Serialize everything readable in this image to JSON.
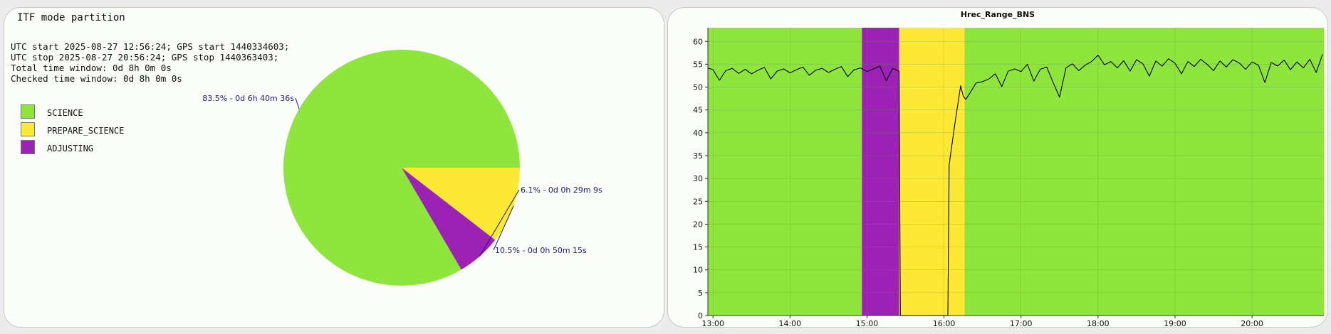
{
  "pie_panel": {
    "title": "ITF mode partition",
    "info_lines": [
      "UTC start 2025-08-27 12:56:24; GPS start 1440334603;",
      "UTC stop 2025-08-27 20:56:24; GPS stop 1440363403;",
      "Total time window: 0d 8h 0m 0s",
      "Checked time window: 0d 8h 0m 0s"
    ],
    "legend": [
      {
        "label": "SCIENCE",
        "color": "#8ee63c"
      },
      {
        "label": "PREPARE_SCIENCE",
        "color": "#fde935"
      },
      {
        "label": "ADJUSTING",
        "color": "#9b22b4"
      }
    ]
  },
  "chart_data": [
    {
      "type": "pie",
      "title": "ITF mode partition",
      "slices": [
        {
          "name": "SCIENCE",
          "value": 83.5,
          "label": "83.5% - 0d 6h 40m 36s",
          "color": "#8ee63c"
        },
        {
          "name": "PREPARE_SCIENCE",
          "value": 10.5,
          "label": "10.5% - 0d 0h 50m 15s",
          "color": "#fde935"
        },
        {
          "name": "ADJUSTING",
          "value": 6.1,
          "label": "6.1% - 0d 0h 29m 9s",
          "color": "#9b22b4"
        }
      ]
    },
    {
      "type": "line",
      "title": "Hrec_Range_BNS",
      "xlim": [
        "12:56",
        "20:56"
      ],
      "ylim": [
        0,
        63
      ],
      "x_ticks": [
        "13:00",
        "14:00",
        "15:00",
        "16:00",
        "17:00",
        "18:00",
        "19:00",
        "20:00"
      ],
      "y_ticks": [
        0,
        5,
        10,
        15,
        20,
        25,
        30,
        35,
        40,
        45,
        50,
        55,
        60
      ],
      "grid": true,
      "bands": [
        {
          "start": "12:56",
          "end": "14:56",
          "mode": "SCIENCE",
          "color": "#8ee63c"
        },
        {
          "start": "14:56",
          "end": "15:25",
          "mode": "ADJUSTING",
          "color": "#9b22b4"
        },
        {
          "start": "15:25",
          "end": "16:16",
          "mode": "PREPARE_SCIENCE",
          "color": "#fde935"
        },
        {
          "start": "16:16",
          "end": "20:56",
          "mode": "SCIENCE",
          "color": "#8ee63c"
        }
      ],
      "series": [
        {
          "color": "#000000",
          "points": [
            [
              "12:56",
              54.2
            ],
            [
              "13:00",
              53.8
            ],
            [
              "13:05",
              51.5
            ],
            [
              "13:10",
              53.6
            ],
            [
              "13:15",
              54.1
            ],
            [
              "13:20",
              53.0
            ],
            [
              "13:25",
              53.9
            ],
            [
              "13:30",
              52.9
            ],
            [
              "13:35",
              53.7
            ],
            [
              "13:40",
              54.3
            ],
            [
              "13:45",
              51.8
            ],
            [
              "13:50",
              53.5
            ],
            [
              "13:55",
              54.0
            ],
            [
              "14:00",
              53.1
            ],
            [
              "14:05",
              53.8
            ],
            [
              "14:10",
              54.4
            ],
            [
              "14:15",
              52.6
            ],
            [
              "14:20",
              53.7
            ],
            [
              "14:25",
              54.1
            ],
            [
              "14:30",
              53.2
            ],
            [
              "14:35",
              53.9
            ],
            [
              "14:40",
              54.5
            ],
            [
              "14:45",
              52.3
            ],
            [
              "14:50",
              53.8
            ],
            [
              "14:55",
              54.2
            ],
            [
              "15:00",
              53.4
            ],
            [
              "15:05",
              54.0
            ],
            [
              "15:10",
              54.6
            ],
            [
              "15:15",
              51.4
            ],
            [
              "15:20",
              54.1
            ],
            [
              "15:25",
              53.5
            ],
            [
              "15:26",
              0
            ],
            [
              "16:03",
              0
            ],
            [
              "16:04",
              33.0
            ],
            [
              "16:06",
              37.0
            ],
            [
              "16:09",
              43.0
            ],
            [
              "16:12",
              48.5
            ],
            [
              "16:13",
              50.3
            ],
            [
              "16:15",
              48.0
            ],
            [
              "16:17",
              47.3
            ],
            [
              "16:20",
              48.6
            ],
            [
              "16:25",
              50.9
            ],
            [
              "16:30",
              51.2
            ],
            [
              "16:35",
              51.8
            ],
            [
              "16:40",
              52.9
            ],
            [
              "16:45",
              50.1
            ],
            [
              "16:50",
              53.5
            ],
            [
              "16:55",
              54.0
            ],
            [
              "17:00",
              53.4
            ],
            [
              "17:05",
              55.0
            ],
            [
              "17:10",
              51.3
            ],
            [
              "17:15",
              53.9
            ],
            [
              "17:20",
              54.4
            ],
            [
              "17:25",
              51.0
            ],
            [
              "17:30",
              47.8
            ],
            [
              "17:35",
              54.2
            ],
            [
              "17:40",
              55.1
            ],
            [
              "17:45",
              53.6
            ],
            [
              "17:50",
              54.8
            ],
            [
              "17:55",
              55.6
            ],
            [
              "18:00",
              57.0
            ],
            [
              "18:05",
              54.9
            ],
            [
              "18:10",
              55.6
            ],
            [
              "18:15",
              54.2
            ],
            [
              "18:20",
              55.8
            ],
            [
              "18:25",
              53.5
            ],
            [
              "18:30",
              56.0
            ],
            [
              "18:35",
              55.1
            ],
            [
              "18:40",
              52.4
            ],
            [
              "18:45",
              55.7
            ],
            [
              "18:50",
              54.6
            ],
            [
              "18:55",
              56.2
            ],
            [
              "19:00",
              55.2
            ],
            [
              "19:05",
              52.9
            ],
            [
              "19:10",
              55.6
            ],
            [
              "19:15",
              54.5
            ],
            [
              "19:20",
              56.1
            ],
            [
              "19:25",
              55.0
            ],
            [
              "19:30",
              53.6
            ],
            [
              "19:35",
              55.7
            ],
            [
              "19:40",
              54.4
            ],
            [
              "19:45",
              56.0
            ],
            [
              "19:50",
              55.3
            ],
            [
              "19:55",
              53.9
            ],
            [
              "20:00",
              55.5
            ],
            [
              "20:05",
              54.8
            ],
            [
              "20:10",
              51.0
            ],
            [
              "20:15",
              55.4
            ],
            [
              "20:20",
              54.6
            ],
            [
              "20:25",
              55.9
            ],
            [
              "20:30",
              53.8
            ],
            [
              "20:35",
              55.5
            ],
            [
              "20:40",
              54.2
            ],
            [
              "20:45",
              56.1
            ],
            [
              "20:50",
              53.2
            ],
            [
              "20:55",
              57.2
            ]
          ]
        }
      ]
    }
  ]
}
